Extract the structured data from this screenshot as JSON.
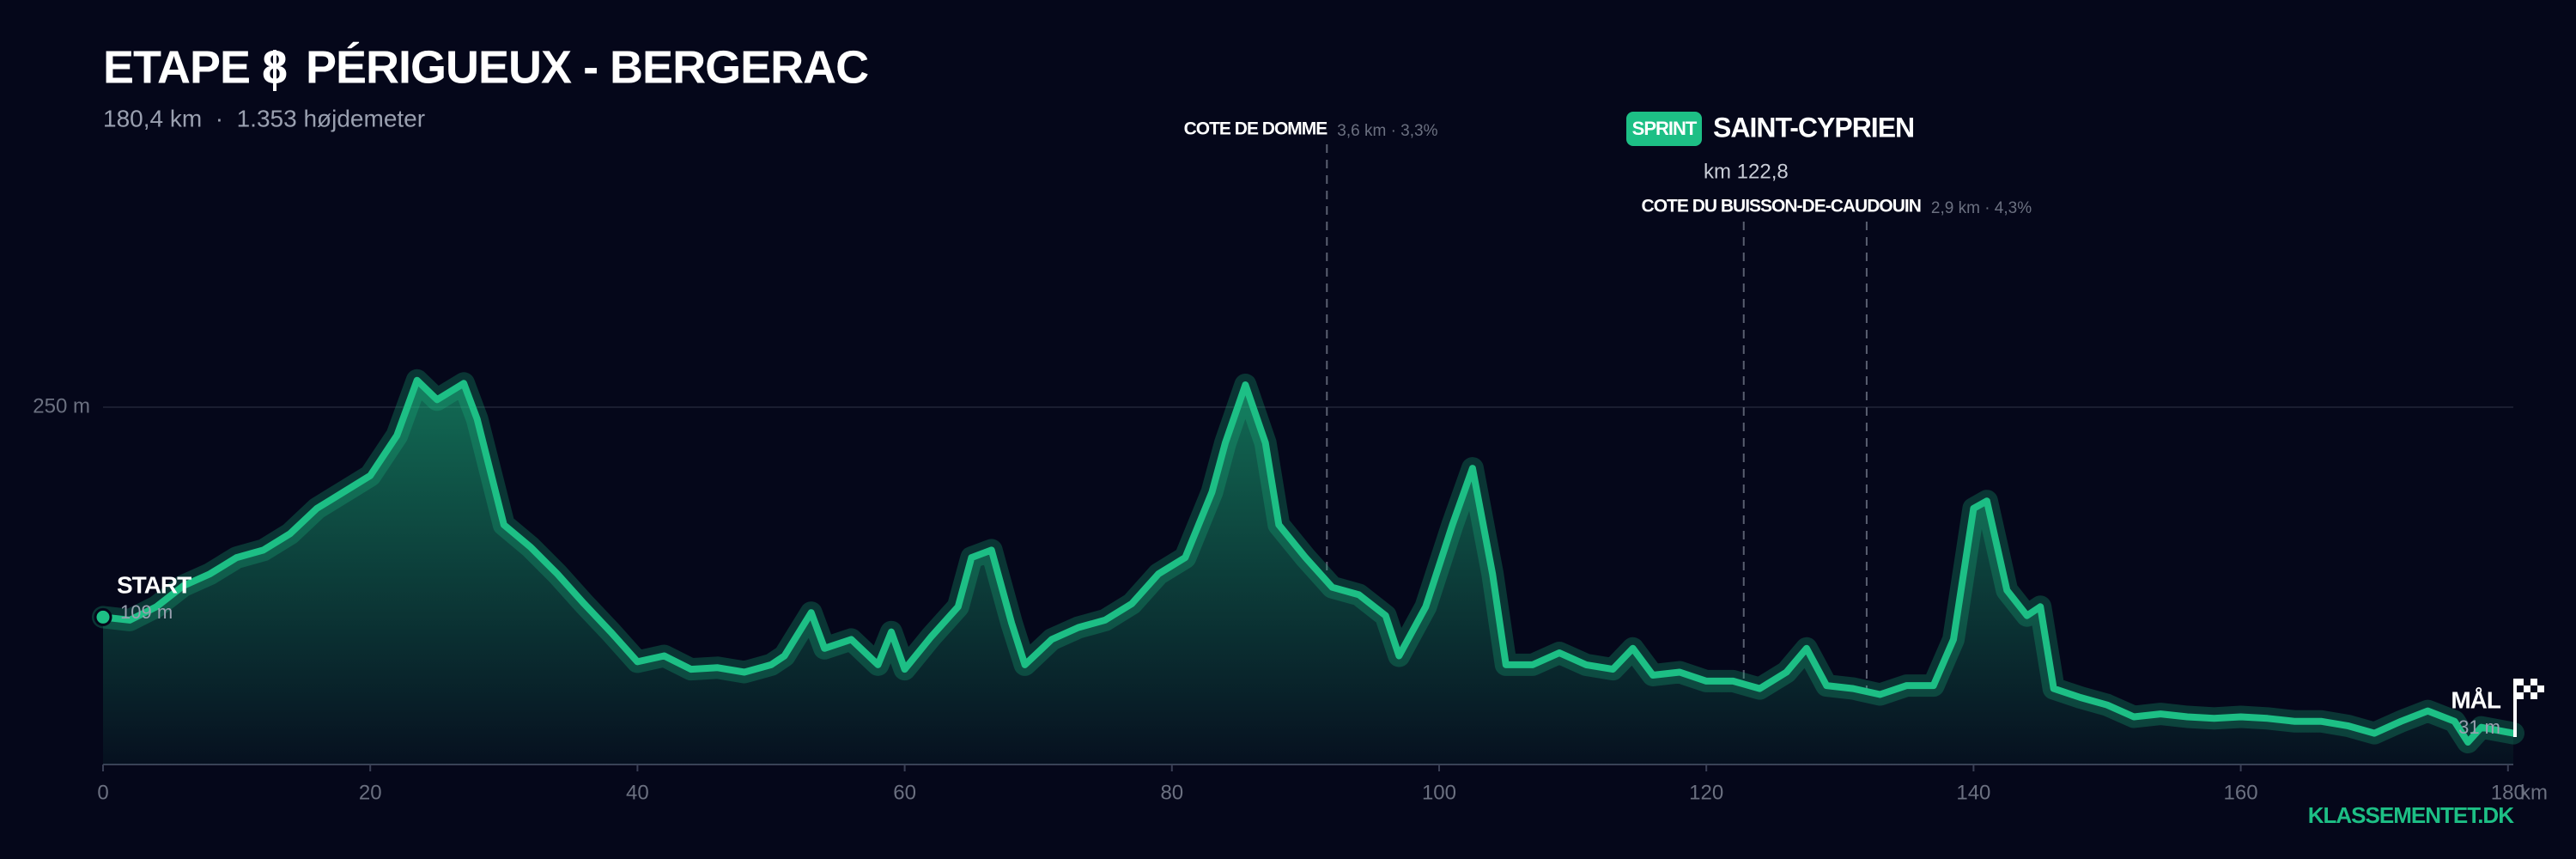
{
  "chart_data": {
    "type": "area",
    "title": "ETAPE 8",
    "route": "PÉRIGUEUX - BERGERAC",
    "subtitle": "180,4 km  ·  1.353 højdemeter",
    "x": [
      0,
      2,
      4,
      6,
      8,
      10,
      12,
      14,
      16,
      18,
      20,
      22,
      23.5,
      25,
      27,
      28,
      30,
      32,
      34,
      36,
      38,
      40,
      42,
      44,
      46,
      48,
      50,
      51,
      53,
      54,
      56,
      58,
      59,
      60,
      62,
      64,
      65,
      66.5,
      68,
      69,
      71,
      73,
      75,
      77,
      79,
      81,
      83,
      84,
      85.5,
      87,
      88,
      90,
      92,
      94,
      96,
      97,
      99,
      101,
      102.5,
      104,
      105,
      107,
      109,
      111,
      113,
      114.5,
      116,
      118,
      120,
      122,
      124,
      126,
      127.5,
      129,
      131,
      133,
      135,
      137,
      138.5,
      140,
      141,
      142.5,
      144,
      145,
      146,
      148,
      150,
      152,
      154,
      156,
      158,
      160,
      162,
      164,
      166,
      168,
      170,
      172,
      174,
      176,
      177,
      178,
      180.4
    ],
    "values": [
      109,
      107,
      116,
      130,
      138,
      149,
      154,
      165,
      182,
      193,
      204,
      231,
      268,
      255,
      266,
      242,
      171,
      156,
      138,
      118,
      99,
      79,
      83,
      74,
      75,
      72,
      77,
      83,
      112,
      88,
      94,
      77,
      99,
      74,
      96,
      116,
      149,
      154,
      105,
      77,
      94,
      102,
      107,
      118,
      138,
      149,
      193,
      226,
      265,
      226,
      171,
      149,
      129,
      124,
      110,
      83,
      116,
      171,
      209,
      138,
      77,
      77,
      85,
      77,
      74,
      88,
      70,
      72,
      66,
      66,
      61,
      72,
      88,
      63,
      61,
      57,
      63,
      63,
      94,
      182,
      187,
      127,
      110,
      116,
      61,
      55,
      50,
      42,
      44,
      42,
      41,
      42,
      41,
      39,
      39,
      36,
      31,
      39,
      46,
      39,
      25,
      35,
      31
    ],
    "color": "#1dbf85",
    "xlim": [
      0,
      180.4
    ],
    "ylim": [
      10,
      400
    ],
    "xticks": [
      0,
      20,
      40,
      60,
      80,
      100,
      120,
      140,
      160,
      180
    ],
    "x_unit": "km",
    "yticks": [
      {
        "value": 250,
        "label": "250 m"
      }
    ],
    "grid": true,
    "start": {
      "label": "START",
      "elevation": {
        "value": 109,
        "label": "109 m"
      }
    },
    "finish": {
      "label": "MÅL",
      "elevation": {
        "value": 31,
        "label": "31 m"
      }
    },
    "climbs": [
      {
        "name": "COTE DE DOMME",
        "details": "3,6 km · 3,3%",
        "km": 91.6
      },
      {
        "name": "COTE DU BUISSON-DE-CAUDOUIN",
        "details": "2,9 km · 4,3%",
        "km": 132
      }
    ],
    "sprint": {
      "type": "SPRINT",
      "name": "SAINT-CYPRIEN",
      "km": {
        "value": 122.8,
        "label": "km 122,8"
      }
    },
    "brand": "KLASSEMENTET.DK"
  }
}
